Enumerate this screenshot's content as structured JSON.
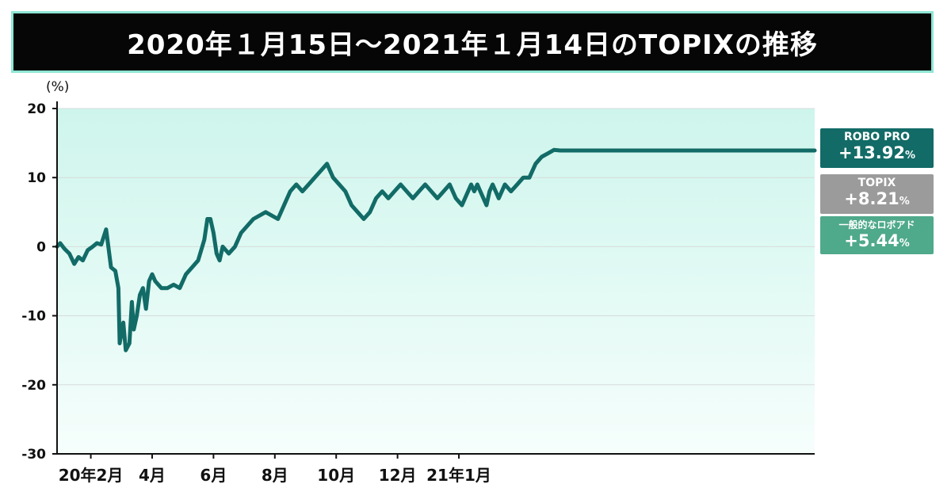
{
  "header": {
    "title": "2020年１月15日〜2021年１月14日のTOPIXの推移"
  },
  "legend": {
    "robo": {
      "name": "ROBO PRO",
      "value": "+13.92",
      "suffix": "%"
    },
    "topix": {
      "name": "TOPIX",
      "value": "+8.21",
      "suffix": "%"
    },
    "general": {
      "name": "一般的なロボアド",
      "value": "+5.44",
      "suffix": "%"
    }
  },
  "chart_data": {
    "type": "line",
    "ylabel": "(%)",
    "ylim": [
      -30,
      20
    ],
    "yticks": [
      20,
      10,
      0,
      -10,
      -20,
      -30
    ],
    "xlim": [
      0,
      12.35
    ],
    "xticks": [
      {
        "pos": 0.55,
        "label": "20年2月"
      },
      {
        "pos": 1.55,
        "label": "4月"
      },
      {
        "pos": 2.55,
        "label": "6月"
      },
      {
        "pos": 3.55,
        "label": "8月"
      },
      {
        "pos": 4.55,
        "label": "10月"
      },
      {
        "pos": 5.55,
        "label": "12月"
      },
      {
        "pos": 6.55,
        "label": "21年1月"
      }
    ],
    "grid": true,
    "series": [
      {
        "name": "ROBO PRO",
        "color": "#126b67",
        "x": [
          0,
          0.05,
          0.12,
          0.2,
          0.28,
          0.35,
          0.42,
          0.5,
          0.58,
          0.65,
          0.72,
          0.8,
          0.88,
          0.95,
          1.0,
          1.02,
          1.08,
          1.12,
          1.18,
          1.22,
          1.25,
          1.3,
          1.35,
          1.4,
          1.45,
          1.5,
          1.55,
          1.6,
          1.7,
          1.8,
          1.9,
          2.0,
          2.1,
          2.2,
          2.3,
          2.4,
          2.45,
          2.5,
          2.55,
          2.6,
          2.65,
          2.7,
          2.8,
          2.9,
          3.0,
          3.2,
          3.4,
          3.6,
          3.7,
          3.8,
          3.9,
          4.0,
          4.1,
          4.2,
          4.3,
          4.4,
          4.5,
          4.6,
          4.7,
          4.8,
          4.9,
          5.0,
          5.1,
          5.2,
          5.3,
          5.4,
          5.5,
          5.6,
          5.7,
          5.8,
          5.9,
          6.0,
          6.1,
          6.2,
          6.3,
          6.4,
          6.5,
          6.6,
          6.7,
          6.75,
          6.8,
          6.85,
          6.9,
          6.95,
          7.0,
          7.05,
          7.1,
          7.15,
          7.2,
          7.3,
          7.4,
          7.5,
          7.6,
          7.7,
          7.8,
          7.9,
          8.0,
          8.1,
          8.2,
          8.3,
          8.4,
          8.5,
          8.6,
          8.7,
          8.8,
          8.9,
          9.0,
          9.1,
          9.2,
          9.3,
          9.4,
          9.5,
          9.6,
          9.7,
          9.8,
          9.9,
          10.0,
          10.1,
          10.2,
          10.3,
          10.4,
          10.5,
          10.6,
          10.7,
          10.8,
          10.9,
          11.0,
          11.1,
          11.2,
          11.3,
          11.4,
          11.5,
          11.6,
          11.7,
          11.8,
          11.9,
          12.0,
          12.1,
          12.2,
          12.3,
          12.35
        ],
        "y": [
          0,
          0.5,
          -0.3,
          -1,
          -2.5,
          -1.5,
          -2,
          -0.5,
          0,
          0.5,
          0.3,
          2.5,
          -3,
          -3.5,
          -6,
          -14,
          -11,
          -15,
          -14,
          -8,
          -12,
          -10,
          -7,
          -6,
          -9,
          -5,
          -4,
          -5,
          -6,
          -6,
          -5.5,
          -6,
          -4,
          -3,
          -2,
          1,
          4,
          4,
          2,
          -1,
          -2,
          0,
          -1,
          0,
          2,
          4,
          5,
          4,
          6,
          8,
          9,
          8,
          9,
          10,
          11,
          12,
          10,
          9,
          8,
          6,
          5,
          4,
          5,
          7,
          8,
          7,
          8,
          9,
          8,
          7,
          8,
          9,
          8,
          7,
          8,
          9,
          7,
          6,
          8,
          9,
          8,
          9,
          8,
          7,
          6,
          8,
          9,
          8,
          7,
          9,
          8,
          9,
          10,
          10,
          12,
          13,
          13.5,
          14,
          13.92,
          13.92,
          13.92,
          13.92,
          13.92,
          13.92,
          13.92,
          13.92,
          13.92,
          13.92,
          13.92,
          13.92,
          13.92,
          13.92,
          13.92,
          13.92,
          13.92,
          13.92,
          13.92,
          13.92,
          13.92,
          13.92,
          13.92,
          13.92,
          13.92,
          13.92,
          13.92,
          13.92,
          13.92,
          13.92,
          13.92,
          13.92,
          13.92,
          13.92,
          13.92,
          13.92,
          13.92,
          13.92,
          13.92,
          13.92,
          13.92,
          13.92,
          13.92
        ]
      }
    ]
  }
}
